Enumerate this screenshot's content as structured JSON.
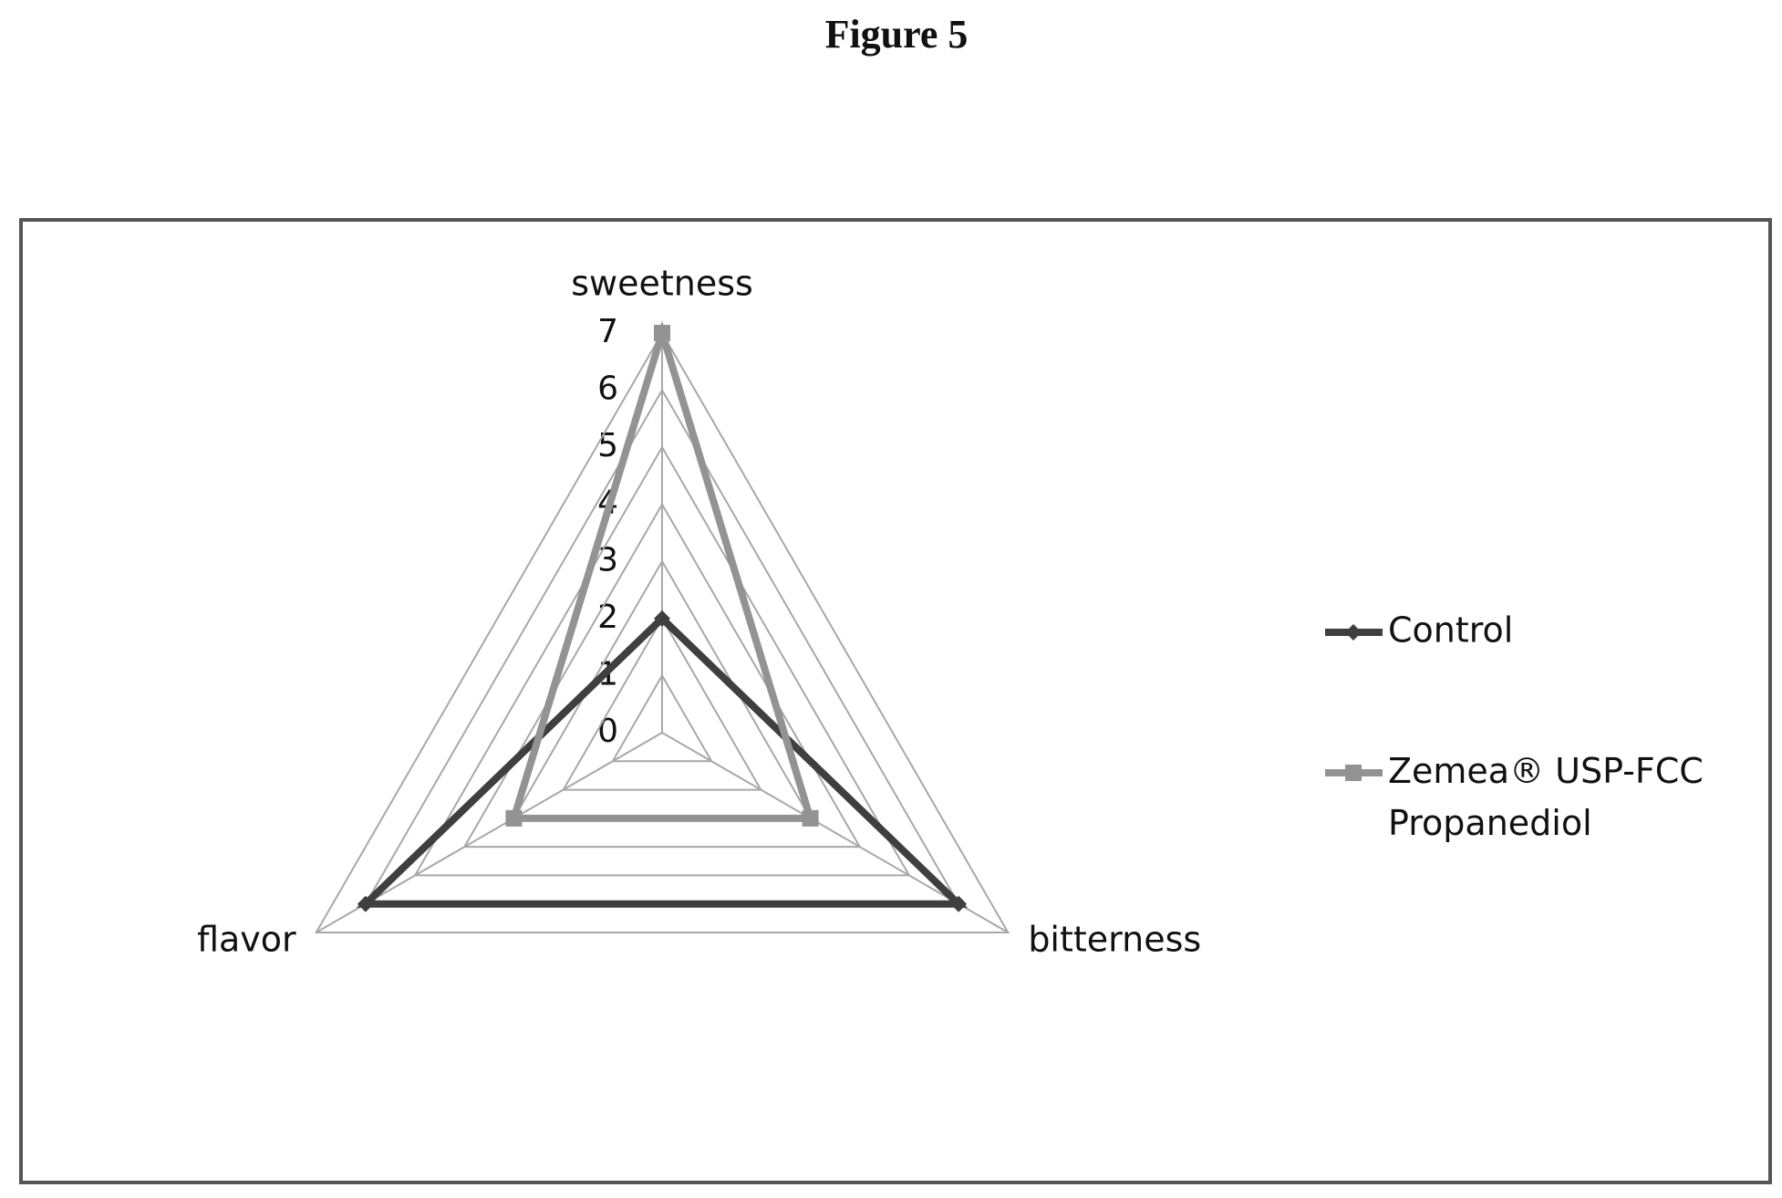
{
  "figure_title": "Figure 5",
  "chart_data": {
    "type": "radar",
    "categories": [
      "sweetness",
      "bitterness",
      "flavor"
    ],
    "series": [
      {
        "name": "Control",
        "color": "#3f3f3f",
        "values": [
          2,
          6,
          6
        ]
      },
      {
        "name": "Zemea® USP-FCC Propanediol",
        "color": "#939393",
        "values": [
          7,
          3,
          3
        ]
      }
    ],
    "rlim": [
      0,
      7
    ],
    "rticks": [
      0,
      1,
      2,
      3,
      4,
      5,
      6,
      7
    ],
    "grid": true,
    "legend": "right"
  }
}
